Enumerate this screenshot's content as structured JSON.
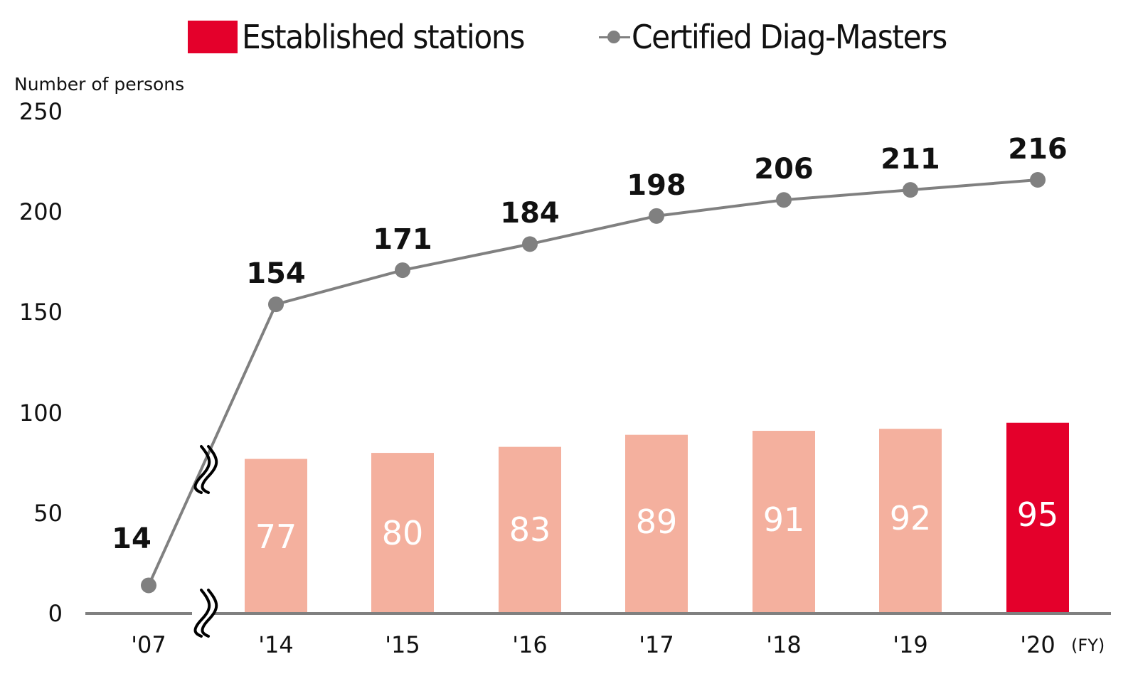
{
  "legend": {
    "bar_label": "Established stations",
    "line_label": "Certified Diag-Masters"
  },
  "axes": {
    "y_title": "Number of persons",
    "y_ticks": [
      "250",
      "200",
      "150",
      "100",
      "50",
      "0"
    ],
    "x_unit": "(FY)"
  },
  "colors": {
    "bar_default": "#f4b09e",
    "bar_highlight": "#e4002b",
    "line": "#808080",
    "axis": "#808080"
  },
  "chart_data": {
    "type": "bar+line",
    "title": "",
    "xlabel": "(FY)",
    "ylabel": "Number of persons",
    "ylim": [
      0,
      250
    ],
    "yticks": [
      0,
      50,
      100,
      150,
      200,
      250
    ],
    "grid": false,
    "legend_position": "top",
    "axis_break": "between '07 and '14 (on x-axis and on line)",
    "categories": [
      "'07",
      "'14",
      "'15",
      "'16",
      "'17",
      "'18",
      "'19",
      "'20"
    ],
    "series": [
      {
        "name": "Established stations",
        "type": "bar",
        "values": [
          null,
          77,
          80,
          83,
          89,
          91,
          92,
          95
        ],
        "highlight_category": "'20"
      },
      {
        "name": "Certified Diag-Masters",
        "type": "line",
        "values": [
          14,
          154,
          171,
          184,
          198,
          206,
          211,
          216
        ]
      }
    ]
  }
}
